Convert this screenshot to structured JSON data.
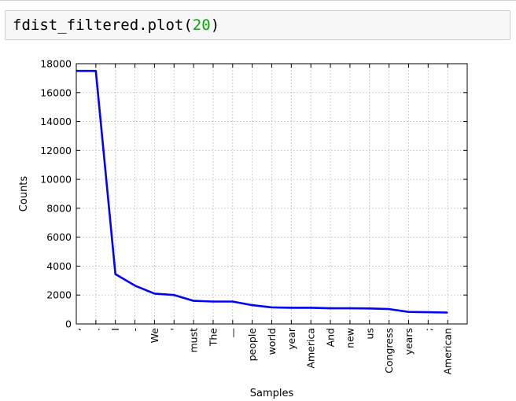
{
  "notebook": {
    "code_cell": {
      "function": "fdist_filtered.plot",
      "open_paren": "(",
      "argument": "20",
      "close_paren": ")"
    }
  },
  "colors": {
    "line": "#0000ff",
    "number_literal": "#00aa00",
    "cell_background": "#f7f7f7",
    "cell_border": "#cfcfcf"
  },
  "chart_data": {
    "type": "line",
    "categories": [
      ",",
      ".",
      "I",
      "-",
      "We",
      "'",
      "must",
      "The",
      "—",
      "people",
      "world",
      "year",
      "America",
      "And",
      "new",
      "us",
      "Congress",
      "years",
      ";",
      "American"
    ],
    "series": [
      {
        "values": [
          17500,
          17500,
          3450,
          2650,
          2100,
          2000,
          1600,
          1550,
          1550,
          1300,
          1150,
          1120,
          1120,
          1080,
          1080,
          1070,
          1030,
          830,
          810,
          790
        ]
      }
    ],
    "xlabel": "Samples",
    "ylabel": "Counts",
    "ylim": [
      0,
      18000
    ],
    "yticks": [
      "0",
      "2000",
      "4000",
      "6000",
      "8000",
      "10000",
      "12000",
      "14000",
      "16000",
      "18000"
    ],
    "grid": true
  }
}
